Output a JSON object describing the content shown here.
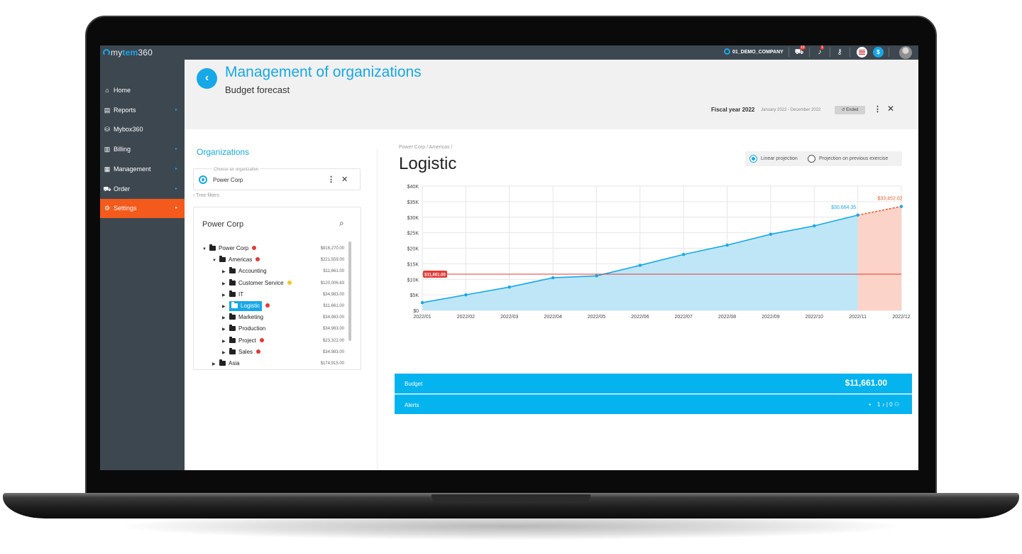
{
  "app": {
    "logo_prefix": "my",
    "logo_mid": "tem",
    "logo_suffix": "360",
    "company": "01_DEMO_COMPANY",
    "cart_count": "10",
    "notif_count": "1",
    "currency_symbol": "$"
  },
  "sidebar": {
    "items": [
      {
        "label": "Home",
        "icon": "home-icon",
        "glyph": "⌂",
        "chevron": false,
        "active": false
      },
      {
        "label": "Reports",
        "icon": "reports-icon",
        "glyph": "▤",
        "chevron": true,
        "active": false
      },
      {
        "label": "Mybox360",
        "icon": "mybox-icon",
        "glyph": "⛁",
        "chevron": false,
        "active": false
      },
      {
        "label": "Billing",
        "icon": "billing-icon",
        "glyph": "▥",
        "chevron": true,
        "active": false
      },
      {
        "label": "Management",
        "icon": "management-icon",
        "glyph": "▦",
        "chevron": true,
        "active": false
      },
      {
        "label": "Order",
        "icon": "cart-icon",
        "glyph": "⛟",
        "chevron": true,
        "active": false
      },
      {
        "label": "Settings",
        "icon": "settings-icon",
        "glyph": "⚙",
        "chevron": true,
        "active": true
      }
    ]
  },
  "header": {
    "title": "Management of organizations",
    "subtitle": "Budget forecast",
    "fiscal_year": "Fiscal year 2022",
    "fiscal_range": "January 2022 - December 2022",
    "status": "Ended"
  },
  "org_panel": {
    "heading": "Organizations",
    "select_label": "Choose an organization",
    "select_value": "Power Corp",
    "tree_filters": "› Tree filters",
    "tree_title": "Power Corp",
    "tree": [
      {
        "label": "Power Corp",
        "level": 0,
        "expanded": true,
        "dot": "#e53935",
        "amount": "$816,270.00",
        "selected": false
      },
      {
        "label": "Americas",
        "level": 1,
        "expanded": true,
        "dot": "#e53935",
        "amount": "$221,559.00",
        "selected": false
      },
      {
        "label": "Accounting",
        "level": 2,
        "expanded": false,
        "dot": "",
        "amount": "$11,661.00",
        "selected": false
      },
      {
        "label": "Customer Service",
        "level": 2,
        "expanded": false,
        "dot": "#f3c623",
        "amount": "$120,006.63",
        "selected": false
      },
      {
        "label": "IT",
        "level": 2,
        "expanded": false,
        "dot": "",
        "amount": "$34,983.00",
        "selected": false
      },
      {
        "label": "Logistic",
        "level": 2,
        "expanded": false,
        "dot": "#e53935",
        "amount": "$11,661.00",
        "selected": true
      },
      {
        "label": "Marketing",
        "level": 2,
        "expanded": false,
        "dot": "",
        "amount": "$34,983.00",
        "selected": false
      },
      {
        "label": "Production",
        "level": 2,
        "expanded": false,
        "dot": "",
        "amount": "$34,983.00",
        "selected": false
      },
      {
        "label": "Project",
        "level": 2,
        "expanded": false,
        "dot": "#e53935",
        "amount": "$23,322.00",
        "selected": false
      },
      {
        "label": "Sales",
        "level": 2,
        "expanded": false,
        "dot": "#e53935",
        "amount": "$34,983.00",
        "selected": false
      },
      {
        "label": "Asia",
        "level": 1,
        "expanded": false,
        "dot": "",
        "amount": "$174,915.00",
        "selected": false
      }
    ]
  },
  "detail": {
    "breadcrumb": "Power Corp / Americas /",
    "title": "Logistic",
    "projection_options": [
      {
        "label": "Linear projection",
        "selected": true
      },
      {
        "label": "Projection on previous exercise",
        "selected": false
      }
    ],
    "budget_label": "Budget",
    "budget_value": "$11,661.00",
    "alerts_label": "Alerts",
    "alerts_count_1": "1",
    "alerts_count_2": "0"
  },
  "colors": {
    "accent": "#17a8e8",
    "sidebar_bg": "#3d4750",
    "active_nav": "#f35a1b",
    "area_fill": "#bfe6f7",
    "projection_fill": "#fbd3c8",
    "budget_line": "#e53935",
    "projection_line": "#f05a28"
  },
  "chart_data": {
    "type": "area",
    "x": [
      "2022/01",
      "2022/02",
      "2022/03",
      "2022/04",
      "2022/05",
      "2022/06",
      "2022/07",
      "2022/08",
      "2022/09",
      "2022/10",
      "2022/11",
      "2022/12"
    ],
    "series": [
      {
        "values": [
          2500,
          5000,
          7500,
          10500,
          11100,
          14500,
          18000,
          21000,
          24500,
          27200,
          30664.35,
          null
        ]
      },
      {
        "values": [
          null,
          null,
          null,
          null,
          null,
          null,
          null,
          null,
          null,
          null,
          30664.35,
          33452.02
        ]
      }
    ],
    "budget": 11661.0,
    "budget_label": "$11,661.00",
    "value_labels": {
      "last_actual": "$30,664.35",
      "projected": "$33,452.02"
    },
    "yticks": [
      0,
      5000,
      10000,
      15000,
      20000,
      25000,
      30000,
      35000,
      40000
    ],
    "ytick_labels": [
      "$0",
      "$5K",
      "$10K",
      "$15K",
      "$20K",
      "$25K",
      "$30K",
      "$35K",
      "$40K"
    ],
    "ylim": [
      0,
      40000
    ],
    "grid": true,
    "title": "",
    "xlabel": "",
    "ylabel": ""
  }
}
